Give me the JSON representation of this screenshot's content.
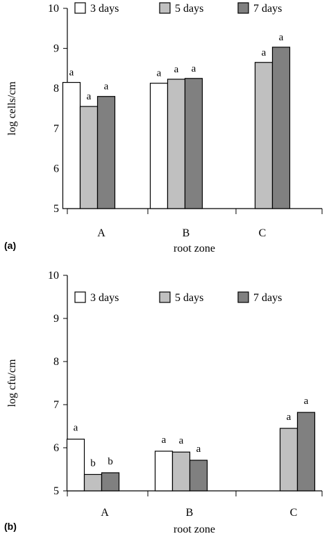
{
  "chart_data": [
    {
      "type": "bar",
      "panel_label": "(a)",
      "categories": [
        "A",
        "B",
        "C"
      ],
      "xlabel": "root zone",
      "ylabel": "log cells/cm",
      "ylim": [
        5,
        10
      ],
      "yticks": [
        "5",
        "6",
        "7",
        "8",
        "9",
        "10"
      ],
      "legend_position": "top",
      "series": [
        {
          "name": "3 days",
          "color": "#ffffff",
          "values": [
            8.15,
            8.13,
            null
          ],
          "letters": [
            "a",
            "a",
            ""
          ]
        },
        {
          "name": "5 days",
          "color": "#c0c0c0",
          "values": [
            7.55,
            8.23,
            8.65
          ],
          "letters": [
            "a",
            "a",
            "a"
          ]
        },
        {
          "name": "7 days",
          "color": "#808080",
          "values": [
            7.8,
            8.25,
            9.03
          ],
          "letters": [
            "a",
            "a",
            "a"
          ]
        }
      ]
    },
    {
      "type": "bar",
      "panel_label": "(b)",
      "categories": [
        "A",
        "B",
        "C"
      ],
      "xlabel": "root zone",
      "ylabel": "log cfu/cm",
      "ylim": [
        5,
        10
      ],
      "yticks": [
        "5",
        "6",
        "7",
        "8",
        "9",
        "10"
      ],
      "legend_position": "top",
      "series": [
        {
          "name": "3 days",
          "color": "#ffffff",
          "values": [
            6.2,
            5.92,
            null
          ],
          "letters": [
            "a",
            "a",
            ""
          ]
        },
        {
          "name": "5 days",
          "color": "#c0c0c0",
          "values": [
            5.38,
            5.9,
            6.45
          ],
          "letters": [
            "b",
            "a",
            "a"
          ]
        },
        {
          "name": "7 days",
          "color": "#808080",
          "values": [
            5.42,
            5.71,
            6.82
          ],
          "letters": [
            "b",
            "a",
            "a"
          ]
        }
      ]
    }
  ]
}
